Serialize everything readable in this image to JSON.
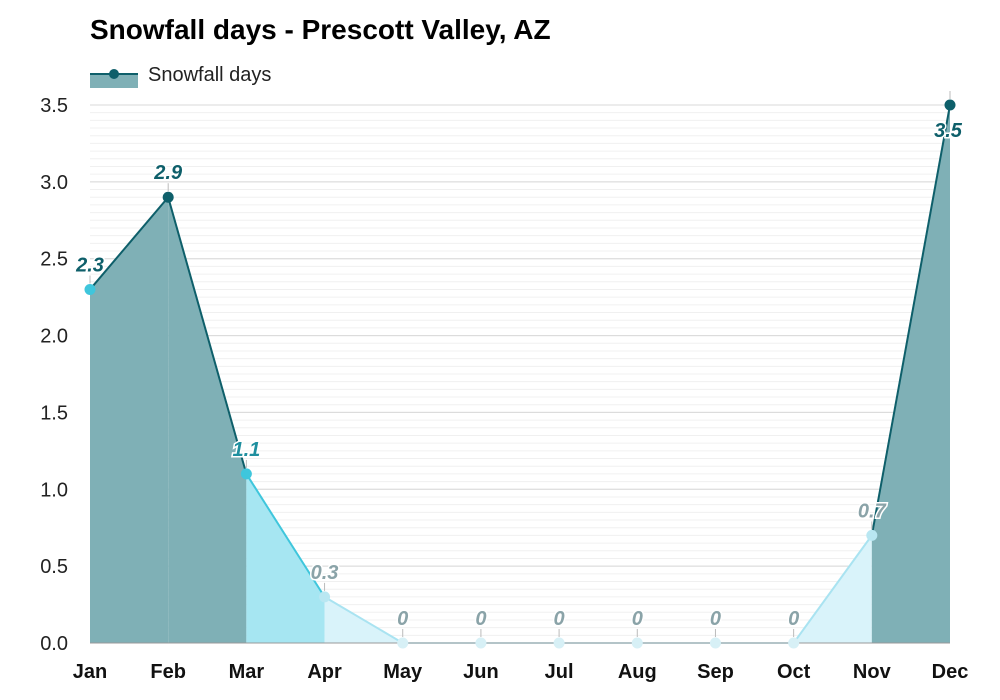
{
  "chart_data": {
    "type": "area",
    "title": "Snowfall days - Prescott Valley, AZ",
    "legend": {
      "label": "Snowfall days",
      "placement": "top-left"
    },
    "categories": [
      "Jan",
      "Feb",
      "Mar",
      "Apr",
      "May",
      "Jun",
      "Jul",
      "Aug",
      "Sep",
      "Oct",
      "Nov",
      "Dec"
    ],
    "series": [
      {
        "name": "Snowfall days",
        "values": [
          2.3,
          2.9,
          1.1,
          0.3,
          0,
          0,
          0,
          0,
          0,
          0,
          0.7,
          3.5
        ]
      }
    ],
    "data_labels": [
      "2.3",
      "2.9",
      "1.1",
      "0.3",
      "0",
      "0",
      "0",
      "0",
      "0",
      "0",
      "0.7",
      "3.5"
    ],
    "ylim": [
      0,
      3.5
    ],
    "yticks": [
      "0.0",
      "0.5",
      "1.0",
      "1.5",
      "2.0",
      "2.5",
      "3.0",
      "3.5"
    ],
    "grid": true,
    "colors": {
      "legend_line": "#0e5f6a",
      "legend_fill": "#7fb0b6",
      "high_fill": "#7fb0b6",
      "high_line": "#0e5f6a",
      "mid_fill": "#a6e6f2",
      "mid_line": "#3fc6dc",
      "low_fill": "#d9f3fa",
      "low_line": "#a9e3f1",
      "none_fill": "#eef9fc",
      "none_line": "#cfeef6",
      "grid": "#d8d8d8",
      "label_dark": "#0e5f6a",
      "label_mid": "#1f8f9f",
      "label_light": "#8aa3a8"
    }
  }
}
